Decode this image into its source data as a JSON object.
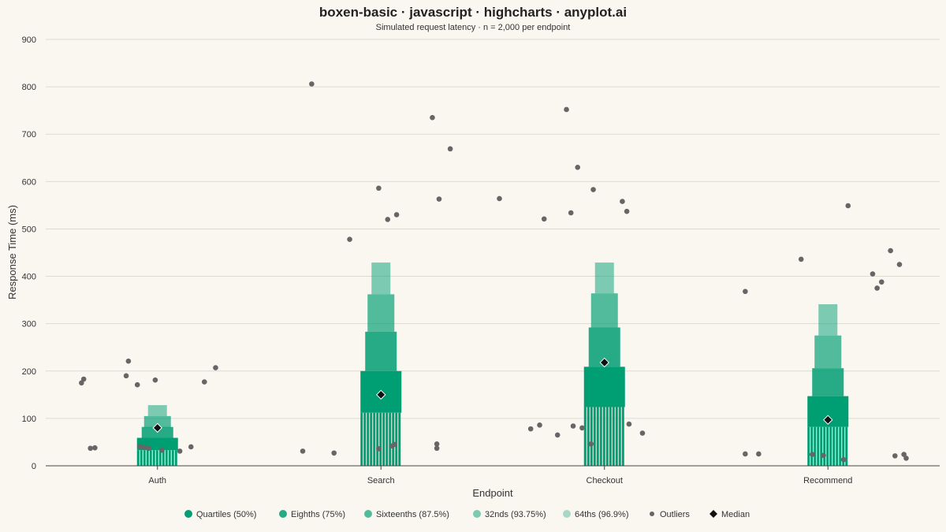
{
  "chart_data": {
    "type": "boxen",
    "title": "boxen-basic · javascript · highcharts · anyplot.ai",
    "subtitle": "Simulated request latency · n = 2,000 per endpoint",
    "xlabel": "Endpoint",
    "ylabel": "Response Time (ms)",
    "ylim": [
      0,
      900
    ],
    "yticks": [
      0,
      100,
      200,
      300,
      400,
      500,
      600,
      700,
      800,
      900
    ],
    "grid": true,
    "legend_position": "bottom",
    "colors": {
      "box": "#009e73",
      "outlier": "#666666",
      "median": "#111111",
      "grid": "#dedad2",
      "background": "#faf7f1"
    },
    "levels": [
      {
        "name": "Quartiles (50%)",
        "opacity": 1.0
      },
      {
        "name": "Eighths (75%)",
        "opacity": 0.85
      },
      {
        "name": "Sixteenths (87.5%)",
        "opacity": 0.68
      },
      {
        "name": "32nds (93.75%)",
        "opacity": 0.5
      },
      {
        "name": "64ths (96.9%)",
        "opacity": 0.34
      }
    ],
    "outliers_label": "Outliers",
    "median_label": "Median",
    "categories": [
      {
        "name": "Auth",
        "median": 80,
        "boxes": [
          [
            34,
            82
          ],
          [
            42,
            105
          ],
          [
            60,
            128
          ],
          [
            60,
            128
          ],
          [
            60,
            128
          ]
        ],
        "level_boxes": [
          [
            33,
            59
          ],
          [
            58,
            82
          ],
          [
            81,
            105
          ],
          [
            105,
            128
          ],
          [
            128,
            128
          ]
        ],
        "outliers": [
          [
            -0.34,
            175
          ],
          [
            -0.33,
            183
          ],
          [
            -0.3,
            37
          ],
          [
            -0.28,
            38
          ],
          [
            -0.14,
            190
          ],
          [
            -0.13,
            221
          ],
          [
            -0.09,
            171
          ],
          [
            -0.08,
            41
          ],
          [
            -0.06,
            39
          ],
          [
            -0.04,
            37
          ],
          [
            -0.01,
            181
          ],
          [
            0.02,
            33
          ],
          [
            0.1,
            31
          ],
          [
            0.15,
            40
          ],
          [
            0.21,
            177
          ],
          [
            0.26,
            207
          ]
        ]
      },
      {
        "name": "Search",
        "median": 150,
        "boxes": [
          [
            112,
            200
          ],
          [
            200,
            283
          ],
          [
            283,
            362
          ],
          [
            362,
            429
          ],
          [
            429,
            429
          ]
        ],
        "level_boxes": [
          [
            112,
            200
          ],
          [
            200,
            283
          ],
          [
            283,
            362
          ],
          [
            362,
            429
          ],
          [
            429,
            429
          ]
        ],
        "outliers": [
          [
            -0.35,
            31
          ],
          [
            -0.31,
            806
          ],
          [
            -0.21,
            27
          ],
          [
            -0.14,
            478
          ],
          [
            -0.01,
            586
          ],
          [
            -0.01,
            36
          ],
          [
            0.03,
            520
          ],
          [
            0.05,
            42
          ],
          [
            0.06,
            45
          ],
          [
            0.07,
            530
          ],
          [
            0.23,
            735
          ],
          [
            0.25,
            46
          ],
          [
            0.25,
            37
          ],
          [
            0.26,
            563
          ],
          [
            0.31,
            669
          ]
        ]
      },
      {
        "name": "Checkout",
        "median": 218,
        "boxes": [
          [
            124,
            209
          ],
          [
            209,
            292
          ],
          [
            292,
            364
          ],
          [
            364,
            429
          ],
          [
            429,
            429
          ]
        ],
        "level_boxes": [
          [
            124,
            209
          ],
          [
            209,
            292
          ],
          [
            292,
            364
          ],
          [
            364,
            429
          ],
          [
            429,
            429
          ]
        ],
        "outliers": [
          [
            -0.47,
            564
          ],
          [
            -0.33,
            78
          ],
          [
            -0.29,
            86
          ],
          [
            -0.27,
            521
          ],
          [
            -0.21,
            65
          ],
          [
            -0.17,
            752
          ],
          [
            -0.15,
            534
          ],
          [
            -0.14,
            84
          ],
          [
            -0.12,
            630
          ],
          [
            -0.1,
            80
          ],
          [
            -0.06,
            46
          ],
          [
            -0.05,
            583
          ],
          [
            0.08,
            558
          ],
          [
            0.1,
            537
          ],
          [
            0.11,
            88
          ],
          [
            0.17,
            69
          ]
        ]
      },
      {
        "name": "Recommend",
        "median": 97,
        "boxes": [
          [
            82,
            147
          ],
          [
            147,
            206
          ],
          [
            206,
            275
          ],
          [
            275,
            341
          ],
          [
            341,
            341
          ]
        ],
        "level_boxes": [
          [
            82,
            147
          ],
          [
            147,
            206
          ],
          [
            206,
            275
          ],
          [
            275,
            341
          ],
          [
            341,
            341
          ]
        ],
        "outliers": [
          [
            -0.37,
            368
          ],
          [
            -0.37,
            25
          ],
          [
            -0.31,
            25
          ],
          [
            -0.12,
            436
          ],
          [
            -0.07,
            24
          ],
          [
            -0.02,
            22
          ],
          [
            0.07,
            13
          ],
          [
            0.09,
            549
          ],
          [
            0.2,
            405
          ],
          [
            0.22,
            375
          ],
          [
            0.24,
            388
          ],
          [
            0.28,
            454
          ],
          [
            0.3,
            21
          ],
          [
            0.32,
            425
          ],
          [
            0.34,
            24
          ],
          [
            0.35,
            16
          ]
        ]
      }
    ]
  }
}
